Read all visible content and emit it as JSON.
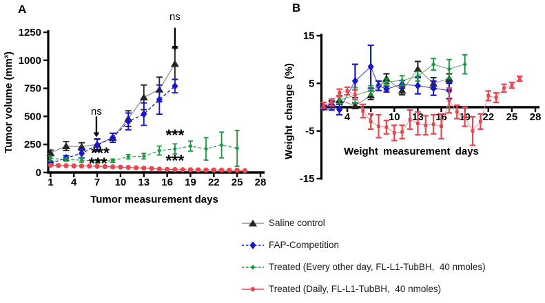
{
  "figure": {
    "panel_a_label": "A",
    "panel_b_label": "B"
  },
  "colors": {
    "saline_marker": "#262626",
    "saline_line": "#8f8f8f",
    "fap_blue": "#1717cd",
    "treated_green": "#179a3d",
    "treated_red": "#e8474f",
    "axis": "#000000"
  },
  "legend": {
    "items": [
      {
        "label": "Saline control",
        "marker": "triangle",
        "color": "#262626",
        "line_color": "#8f8f8f",
        "dash": "solid"
      },
      {
        "label": "FAP-Competition",
        "marker": "diamond",
        "color": "#1717cd",
        "line_color": "#1717cd",
        "dash": "dashed"
      },
      {
        "label": "Treated (Every other day, FL-L1-TubBH,  40 nmoles)",
        "marker": "diamond-small",
        "color": "#179a3d",
        "line_color": "#179a3d",
        "dash": "dashed"
      },
      {
        "label": "Treated (Daily, FL-L1-TubBH,  40 nmoles)",
        "marker": "circle-small",
        "color": "#e8474f",
        "line_color": "#e8474f",
        "dash": "solid"
      }
    ]
  },
  "chart_data": [
    {
      "panel": "A",
      "type": "line",
      "title": "",
      "xlabel": "Tumor measurement days",
      "ylabel": "Tumor volume (mm³)",
      "xlim": [
        0.7,
        28
      ],
      "ylim": [
        0,
        1250
      ],
      "xticks": [
        1,
        4,
        7,
        10,
        13,
        16,
        19,
        22,
        25,
        28
      ],
      "yticks": [
        0,
        250,
        500,
        750,
        1000,
        1250
      ],
      "x_axis_at": 0,
      "grid": false,
      "series": [
        {
          "name": "Saline control",
          "color": "#262626",
          "line_color": "#8f8f8f",
          "line_dash": "solid",
          "line_width": 1.3,
          "marker": "triangle",
          "cap": 4.5,
          "err_lw": 1.9,
          "x": [
            1,
            3,
            5,
            7,
            9,
            11,
            13,
            15,
            17
          ],
          "y": [
            175,
            235,
            230,
            250,
            310,
            480,
            670,
            740,
            970
          ],
          "err": [
            25,
            40,
            35,
            45,
            40,
            70,
            110,
            110,
            140
          ]
        },
        {
          "name": "FAP-Competition",
          "color": "#1717cd",
          "line_color": "#1717cd",
          "line_dash": "dashed",
          "line_width": 1.4,
          "marker": "diamond",
          "cap": 4.5,
          "err_lw": 1.9,
          "x": [
            1,
            3,
            5,
            7,
            9,
            11,
            13,
            15,
            17
          ],
          "y": [
            80,
            130,
            170,
            245,
            310,
            455,
            520,
            650,
            770
          ],
          "err": [
            15,
            20,
            40,
            55,
            40,
            75,
            100,
            130,
            60
          ]
        },
        {
          "name": "Treated (Every other day, FL-L1-TubBH,  40 nmoles)",
          "color": "#179a3d",
          "line_color": "#179a3d",
          "line_dash": "dashed",
          "line_width": 1.2,
          "marker": "diamond-small",
          "cap": 3.5,
          "err_lw": 1.8,
          "x": [
            1,
            3,
            5,
            7,
            9,
            11,
            13,
            15,
            17,
            19,
            21,
            23,
            25
          ],
          "y": [
            125,
            115,
            110,
            100,
            105,
            140,
            145,
            195,
            210,
            235,
            210,
            245,
            215
          ],
          "err": [
            20,
            15,
            18,
            15,
            15,
            20,
            25,
            40,
            45,
            45,
            100,
            115,
            160
          ]
        },
        {
          "name": "Treated (Daily, FL-L1-TubBH,  40 nmoles)",
          "color": "#e8474f",
          "line_color": "#e8474f",
          "line_dash": "solid",
          "line_width": 1.2,
          "marker": "circle",
          "cap": 3.5,
          "err_lw": 1.6,
          "x": [
            1,
            2,
            3,
            4,
            5,
            6,
            7,
            8,
            9,
            10,
            11,
            12,
            13,
            14,
            15,
            16,
            17,
            18,
            19,
            20,
            21,
            22,
            23,
            24,
            25,
            26
          ],
          "y": [
            65,
            62,
            60,
            58,
            58,
            57,
            55,
            53,
            50,
            48,
            45,
            42,
            38,
            35,
            30,
            28,
            26,
            25,
            24,
            23,
            22,
            22,
            21,
            20,
            20,
            15
          ],
          "err": []
        }
      ],
      "annotations": [
        {
          "type": "text",
          "text": "ns",
          "x": 6.9,
          "y": 545
        },
        {
          "type": "arrow",
          "x": 6.9,
          "y_from": 500,
          "y_to": 315
        },
        {
          "type": "text",
          "text": "ns",
          "x": 17,
          "y": 1390
        },
        {
          "type": "arrow",
          "x": 17,
          "y_from": 1290,
          "y_to": 1085
        },
        {
          "type": "stars",
          "text": "***",
          "x": 7.4,
          "y": 186
        },
        {
          "type": "stars",
          "text": "***",
          "x": 7.1,
          "y": 95
        },
        {
          "type": "stars",
          "text": "***",
          "x": 17,
          "y": 345
        },
        {
          "type": "stars",
          "text": "***",
          "x": 17,
          "y": 120
        }
      ]
    },
    {
      "panel": "B",
      "type": "line",
      "title": "",
      "xlabel": "Weight measurement days",
      "ylabel": "Weight change (%)",
      "xlim": [
        0.7,
        28
      ],
      "ylim": [
        -15,
        15
      ],
      "xticks": [
        4,
        7,
        10,
        13,
        16,
        19,
        22,
        25,
        28
      ],
      "yticks": [
        -15,
        -5,
        5,
        15
      ],
      "x_axis_at": 0,
      "grid": false,
      "series": [
        {
          "name": "Saline control",
          "color": "#262626",
          "line_color": "#8f8f8f",
          "line_dash": "solid",
          "line_width": 1.1,
          "marker": "triangle",
          "cap": 4.5,
          "err_lw": 2.1,
          "x": [
            1,
            2,
            3,
            5,
            7,
            9,
            11,
            13,
            15,
            17
          ],
          "y": [
            0,
            0.8,
            1.5,
            0.3,
            2.5,
            6,
            3.5,
            8,
            5,
            6
          ],
          "err": [
            0.3,
            0.5,
            0.9,
            0.6,
            0.9,
            1,
            0.9,
            1.6,
            1.2,
            1
          ]
        },
        {
          "name": "FAP-Competition",
          "color": "#1717cd",
          "line_color": "#4444bb",
          "line_dash": "solid",
          "line_width": 1.1,
          "marker": "diamond",
          "cap": 4.5,
          "err_lw": 2.2,
          "x": [
            1,
            2,
            3,
            5,
            7,
            8,
            9,
            11,
            13,
            15,
            17
          ],
          "y": [
            0,
            0.3,
            -0.5,
            5.5,
            8.5,
            4.5,
            3.8,
            4.8,
            4.5,
            4,
            3.5
          ],
          "err": [
            0.4,
            0.9,
            1.1,
            3.5,
            4.5,
            1,
            0.6,
            0.8,
            1.7,
            1.5,
            1.7
          ]
        },
        {
          "name": "Treated (Every other day, FL-L1-TubBH,  40 nmoles)",
          "color": "#179a3d",
          "line_color": "#58a868",
          "line_dash": "solid",
          "line_width": 1,
          "marker": "diamond-small",
          "cap": 3.8,
          "err_lw": 2,
          "x": [
            3,
            5,
            7,
            9,
            11,
            13,
            15,
            17,
            19
          ],
          "y": [
            1.5,
            2.5,
            3.5,
            5.3,
            5.6,
            6.5,
            9,
            8,
            9
          ],
          "err": [
            0.8,
            1.6,
            1,
            0.7,
            1,
            1,
            1.2,
            2,
            2
          ]
        },
        {
          "name": "Treated (Daily, FL-L1-TubBH,  40 nmoles)",
          "color": "#e8474f",
          "line_color": "#ef9097",
          "line_dash": "solid",
          "line_width": 1,
          "marker": "square-small",
          "cap": 4.2,
          "err_lw": 2.2,
          "x": [
            1,
            2,
            3,
            4,
            5,
            6,
            7,
            8,
            9,
            10,
            11,
            12,
            13,
            14,
            15,
            16,
            17,
            18,
            19,
            20,
            21,
            22,
            23,
            24,
            25,
            26
          ],
          "y": [
            0.4,
            1,
            3,
            3.4,
            2.6,
            -0.8,
            -3,
            -4,
            -4.2,
            -5.4,
            -5.2,
            -2.6,
            -3.4,
            -3.8,
            -3.6,
            -4,
            1.4,
            -1,
            -2,
            -5,
            -3,
            2.4,
            2,
            4,
            4.6,
            6
          ],
          "err": [
            0.6,
            0.7,
            0.8,
            0.8,
            1,
            1.4,
            1.6,
            2.4,
            1.4,
            1.6,
            1.4,
            2,
            2.4,
            2,
            2,
            2.6,
            2.6,
            1.4,
            2,
            3,
            1.6,
            1,
            1,
            0.8,
            0.6,
            0.5
          ]
        }
      ],
      "annotations": []
    }
  ]
}
